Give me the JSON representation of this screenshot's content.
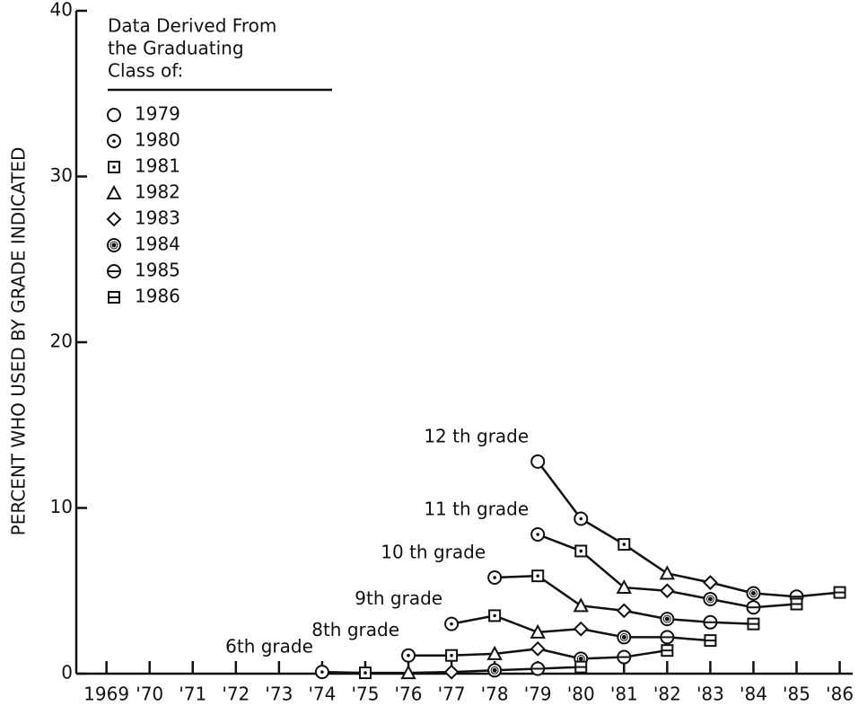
{
  "chart_data": {
    "type": "line",
    "ylabel": "PERCENT WHO USED BY GRADE INDICATED",
    "xlim": [
      1968.3,
      1986.3
    ],
    "xticks": [
      {
        "value": 1969,
        "label": "1969"
      },
      {
        "value": 1970,
        "label": "'70"
      },
      {
        "value": 1971,
        "label": "'71"
      },
      {
        "value": 1972,
        "label": "'72"
      },
      {
        "value": 1973,
        "label": "'73"
      },
      {
        "value": 1974,
        "label": "'74"
      },
      {
        "value": 1975,
        "label": "'75"
      },
      {
        "value": 1976,
        "label": "'76"
      },
      {
        "value": 1977,
        "label": "'77"
      },
      {
        "value": 1978,
        "label": "'78"
      },
      {
        "value": 1979,
        "label": "'79"
      },
      {
        "value": 1980,
        "label": "'80"
      },
      {
        "value": 1981,
        "label": "'81"
      },
      {
        "value": 1982,
        "label": "'82"
      },
      {
        "value": 1983,
        "label": "'83"
      },
      {
        "value": 1984,
        "label": "'84"
      },
      {
        "value": 1985,
        "label": "'85"
      },
      {
        "value": 1986,
        "label": "'86"
      }
    ],
    "ylim": [
      0,
      40
    ],
    "yticks": [
      0,
      10,
      20,
      30,
      40
    ],
    "color": "#111111",
    "legend": {
      "title": [
        "Data Derived From",
        "the Graduating",
        "Class of:"
      ],
      "entries": [
        {
          "label": 1979,
          "marker": "circle"
        },
        {
          "label": 1980,
          "marker": "circle-dot"
        },
        {
          "label": 1981,
          "marker": "square-dot"
        },
        {
          "label": 1982,
          "marker": "triangle"
        },
        {
          "label": 1983,
          "marker": "diamond"
        },
        {
          "label": 1984,
          "marker": "double-circle"
        },
        {
          "label": 1985,
          "marker": "circle-bar"
        },
        {
          "label": 1986,
          "marker": "square-bar"
        }
      ]
    },
    "series": [
      {
        "name": "12 th grade",
        "x": [
          1979,
          1980,
          1981,
          1982,
          1983,
          1984,
          1985,
          1986
        ],
        "values": [
          12.8,
          9.35,
          7.8,
          6.05,
          5.5,
          4.85,
          4.65,
          4.9
        ],
        "class_of": [
          1979,
          1980,
          1981,
          1982,
          1983,
          1984,
          1985,
          1986
        ]
      },
      {
        "name": "11 th grade",
        "x": [
          1979,
          1980,
          1981,
          1982,
          1983,
          1984,
          1985
        ],
        "values": [
          8.4,
          7.4,
          5.2,
          5.0,
          4.5,
          4.0,
          4.2
        ],
        "class_of": [
          1980,
          1981,
          1982,
          1983,
          1984,
          1985,
          1986
        ]
      },
      {
        "name": "10 th grade",
        "x": [
          1978,
          1979,
          1980,
          1981,
          1982,
          1983,
          1984
        ],
        "values": [
          5.8,
          5.9,
          4.1,
          3.8,
          3.3,
          3.1,
          3.0
        ],
        "class_of": [
          1980,
          1981,
          1982,
          1983,
          1984,
          1985,
          1986
        ]
      },
      {
        "name": "9th grade",
        "x": [
          1977,
          1978,
          1979,
          1980,
          1981,
          1982,
          1983
        ],
        "values": [
          3.0,
          3.5,
          2.5,
          2.7,
          2.2,
          2.2,
          2.0
        ],
        "class_of": [
          1980,
          1981,
          1982,
          1983,
          1984,
          1985,
          1986
        ]
      },
      {
        "name": "8th grade",
        "x": [
          1976,
          1977,
          1978,
          1979,
          1980,
          1981,
          1982
        ],
        "values": [
          1.1,
          1.1,
          1.2,
          1.5,
          0.9,
          1.0,
          1.4
        ],
        "class_of": [
          1980,
          1981,
          1982,
          1983,
          1984,
          1985,
          1986
        ]
      },
      {
        "name": "6th grade",
        "x": [
          1974,
          1975,
          1976,
          1977,
          1978,
          1979,
          1980
        ],
        "values": [
          0.1,
          0.05,
          0.05,
          0.1,
          0.2,
          0.3,
          0.4
        ],
        "class_of": [
          1980,
          1981,
          1982,
          1983,
          1984,
          1985,
          1986
        ]
      }
    ]
  }
}
